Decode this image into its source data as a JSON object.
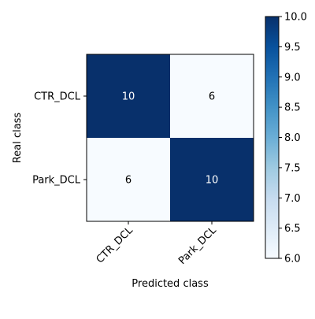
{
  "chart_data": {
    "type": "heatmap",
    "title": "",
    "xlabel": "Predicted class",
    "ylabel": "Real class",
    "x_categories": [
      "CTR_DCL",
      "Park_DCL"
    ],
    "y_categories": [
      "CTR_DCL",
      "Park_DCL"
    ],
    "values": [
      [
        10,
        6
      ],
      [
        6,
        10
      ]
    ],
    "colormap": "Blues",
    "color_low": "#f7fbff",
    "color_high": "#08306b",
    "colorbar": {
      "min": 6.0,
      "max": 10.0,
      "ticks": [
        "6.0",
        "6.5",
        "7.0",
        "7.5",
        "8.0",
        "8.5",
        "9.0",
        "9.5",
        "10.0"
      ]
    },
    "x_tick_rotation": "45 degrees",
    "grid": false,
    "legend": "colorbar right"
  }
}
